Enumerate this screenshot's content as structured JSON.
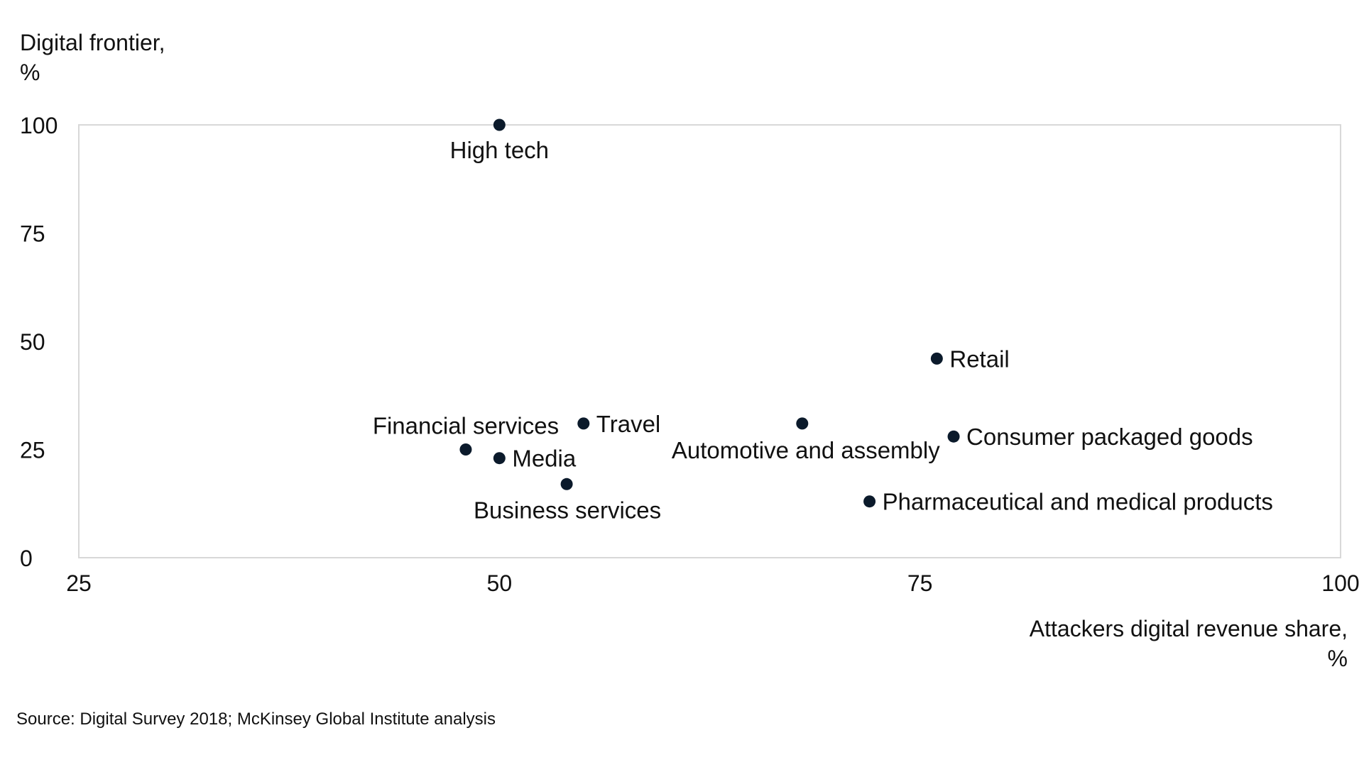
{
  "chart_data": {
    "type": "scatter",
    "title": "",
    "ylabel_lines": [
      "Digital frontier,",
      "%"
    ],
    "xlabel_lines": [
      "Attackers digital revenue share,",
      "%"
    ],
    "xlim": [
      25,
      100
    ],
    "ylim": [
      0,
      100
    ],
    "x_ticks": [
      25,
      50,
      75,
      100
    ],
    "y_ticks": [
      0,
      25,
      50,
      75,
      100
    ],
    "grid": false,
    "point_color": "#0b1a2b",
    "points": [
      {
        "label": "High tech",
        "x": 50,
        "y": 100
      },
      {
        "label": "Retail",
        "x": 76,
        "y": 46
      },
      {
        "label": "Travel",
        "x": 55,
        "y": 31
      },
      {
        "label": "Automotive and assembly",
        "x": 68,
        "y": 31
      },
      {
        "label": "Consumer packaged goods",
        "x": 77,
        "y": 28
      },
      {
        "label": "Financial services",
        "x": 48,
        "y": 25
      },
      {
        "label": "Media",
        "x": 50,
        "y": 23
      },
      {
        "label": "Business services",
        "x": 54,
        "y": 17
      },
      {
        "label": "Pharmaceutical and medical products",
        "x": 72,
        "y": 13
      }
    ]
  },
  "source": "Source: Digital  Survey 2018; McKinsey Global Institute analysis"
}
